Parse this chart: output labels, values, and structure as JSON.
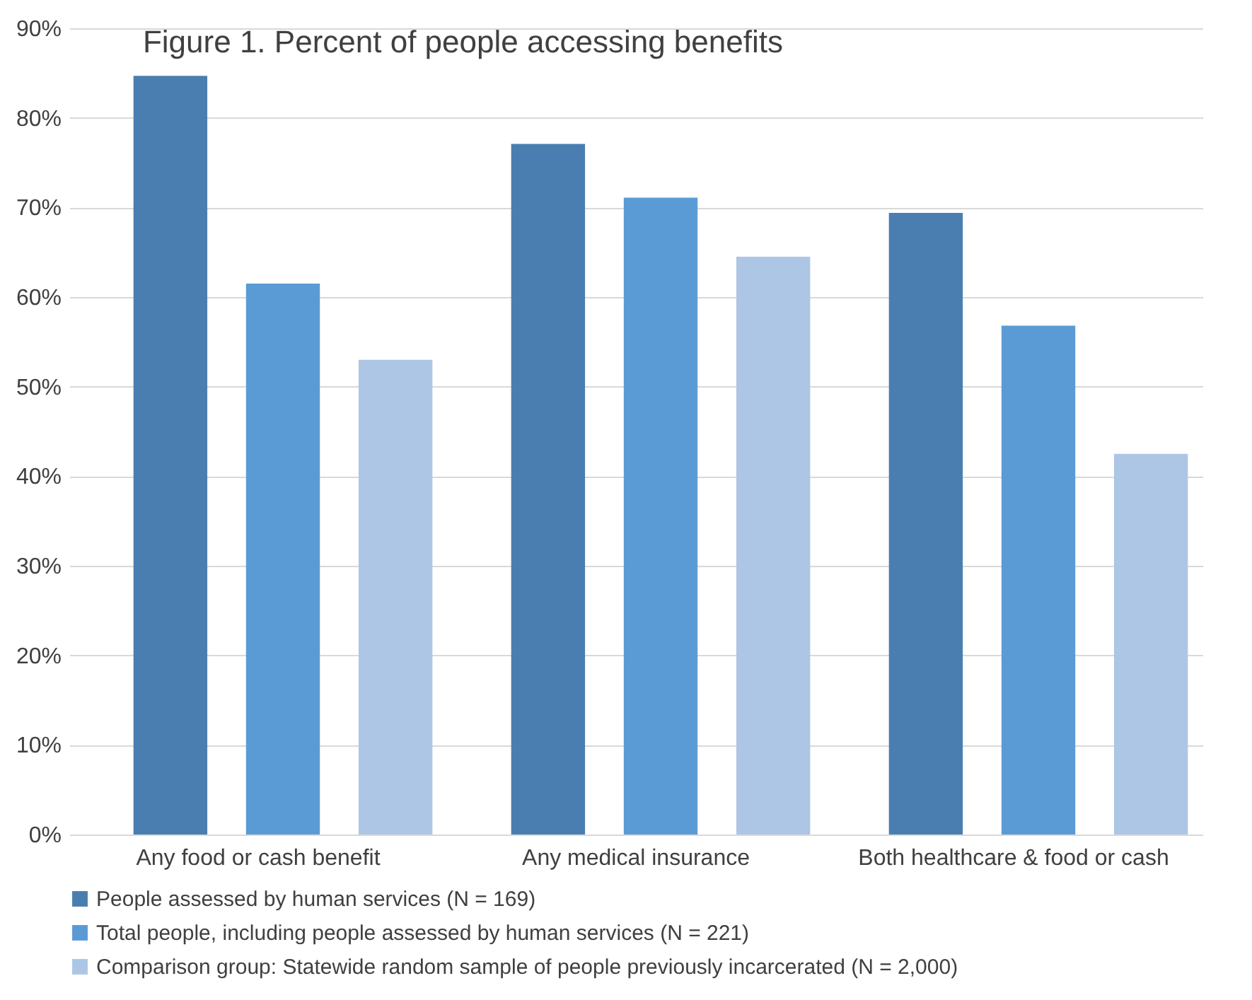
{
  "chart_data": {
    "type": "bar",
    "title": "Figure 1. Percent of people accessing benefits",
    "categories": [
      "Any food or cash benefit",
      "Any medical insurance",
      "Both healthcare & food or cash"
    ],
    "series": [
      {
        "name": "People assessed by human services (N = 169)",
        "color": "#4a7eb0",
        "values": [
          84.7,
          77.1,
          69.4
        ]
      },
      {
        "name": "Total people, including people assessed by human services (N = 221)",
        "color": "#5b9bd5",
        "values": [
          61.5,
          71.1,
          56.8
        ]
      },
      {
        "name": "Comparison group: Statewide random sample of people previously incarcerated (N = 2,000)",
        "color": "#adc6e5",
        "values": [
          53.0,
          64.5,
          42.5
        ]
      }
    ],
    "ylim": [
      0,
      90
    ],
    "yticks": [
      {
        "value": 0,
        "label": "0%"
      },
      {
        "value": 10,
        "label": "10%"
      },
      {
        "value": 20,
        "label": "20%"
      },
      {
        "value": 30,
        "label": "30%"
      },
      {
        "value": 40,
        "label": "40%"
      },
      {
        "value": 50,
        "label": "50%"
      },
      {
        "value": 60,
        "label": "60%"
      },
      {
        "value": 70,
        "label": "70%"
      },
      {
        "value": 80,
        "label": "80%"
      },
      {
        "value": 90,
        "label": "90%"
      }
    ],
    "grid": "y",
    "legend": "bottom"
  }
}
